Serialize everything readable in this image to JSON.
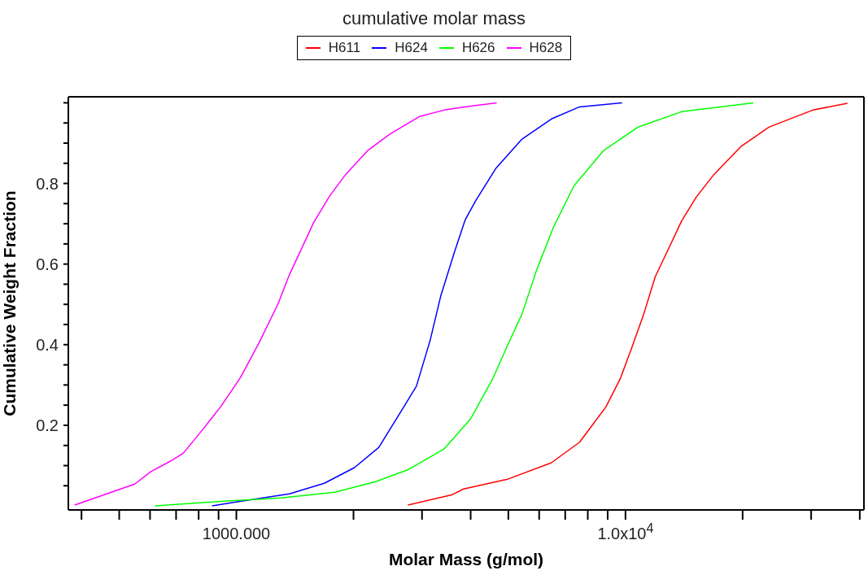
{
  "chart_data": {
    "type": "line",
    "title": "cumulative molar mass",
    "xlabel": "Molar Mass (g/mol)",
    "ylabel": "Cumulative Weight Fraction",
    "log": "x",
    "legend": "top",
    "xlim": [
      370,
      41000
    ],
    "xticks": [
      {
        "value": 400,
        "label": null
      },
      {
        "value": 500,
        "label": null
      },
      {
        "value": 600,
        "label": null
      },
      {
        "value": 700,
        "label": null
      },
      {
        "value": 800,
        "label": null
      },
      {
        "value": 900,
        "label": null
      },
      {
        "value": 1000,
        "label": "1000.000"
      },
      {
        "value": 2000,
        "label": null
      },
      {
        "value": 3000,
        "label": null
      },
      {
        "value": 4000,
        "label": null
      },
      {
        "value": 5000,
        "label": null
      },
      {
        "value": 6000,
        "label": null
      },
      {
        "value": 7000,
        "label": null
      },
      {
        "value": 8000,
        "label": null
      },
      {
        "value": 9000,
        "label": null
      },
      {
        "value": 10000,
        "label": "1.0x10$^{4}$"
      },
      {
        "value": 20000,
        "label": null
      },
      {
        "value": 30000,
        "label": null
      },
      {
        "value": 40000,
        "label": null
      }
    ],
    "ylim": [
      -0.01,
      1.015
    ],
    "yticks": [
      {
        "value": 0.05,
        "label": null
      },
      {
        "value": 0.1,
        "label": null
      },
      {
        "value": 0.15,
        "label": null
      },
      {
        "value": 0.2,
        "label": "0.2"
      },
      {
        "value": 0.25,
        "label": null
      },
      {
        "value": 0.3,
        "label": null
      },
      {
        "value": 0.35,
        "label": null
      },
      {
        "value": 0.4,
        "label": "0.4"
      },
      {
        "value": 0.45,
        "label": null
      },
      {
        "value": 0.5,
        "label": null
      },
      {
        "value": 0.55,
        "label": null
      },
      {
        "value": 0.6,
        "label": "0.6"
      },
      {
        "value": 0.65,
        "label": null
      },
      {
        "value": 0.7,
        "label": null
      },
      {
        "value": 0.75,
        "label": null
      },
      {
        "value": 0.8,
        "label": "0.8"
      },
      {
        "value": 0.85,
        "label": null
      },
      {
        "value": 0.9,
        "label": null
      },
      {
        "value": 0.95,
        "label": null
      },
      {
        "value": 1.0,
        "label": null
      }
    ],
    "series": [
      {
        "name": "H611",
        "color": "#ff0000",
        "x": [
          2760,
          3590,
          3835,
          4970,
          6450,
          7620,
          8900,
          9700,
          10420,
          11140,
          11930,
          12760,
          13940,
          15200,
          16870,
          19770,
          23400,
          30300,
          37200
        ],
        "values": [
          0.002,
          0.028,
          0.042,
          0.066,
          0.107,
          0.158,
          0.245,
          0.316,
          0.397,
          0.476,
          0.569,
          0.628,
          0.707,
          0.766,
          0.822,
          0.891,
          0.94,
          0.982,
          0.999
        ]
      },
      {
        "name": "H624",
        "color": "#0000ff",
        "x": [
          866,
          1005,
          1368,
          1682,
          2011,
          2323,
          2683,
          2902,
          3148,
          3350,
          3630,
          3870,
          4120,
          4650,
          5420,
          6450,
          7620,
          9800
        ],
        "values": [
          0.0,
          0.01,
          0.03,
          0.056,
          0.095,
          0.145,
          0.243,
          0.297,
          0.411,
          0.52,
          0.628,
          0.709,
          0.757,
          0.838,
          0.91,
          0.96,
          0.99,
          1.0
        ]
      },
      {
        "name": "H626",
        "color": "#00ff00",
        "x": [
          618,
          944,
          1303,
          1790,
          2279,
          2764,
          3415,
          4000,
          4560,
          4970,
          5420,
          5910,
          6540,
          7370,
          8770,
          10780,
          13940,
          21300
        ],
        "values": [
          0.0,
          0.012,
          0.02,
          0.034,
          0.06,
          0.09,
          0.141,
          0.216,
          0.316,
          0.397,
          0.476,
          0.585,
          0.693,
          0.794,
          0.881,
          0.94,
          0.978,
          1.0
        ]
      },
      {
        "name": "H628",
        "color": "#ff00ff",
        "x": [
          384,
          497,
          548,
          603,
          674,
          731,
          817,
          913,
          1024,
          1144,
          1278,
          1368,
          1477,
          1580,
          1740,
          1916,
          2172,
          2475,
          2956,
          3415,
          4000,
          4667
        ],
        "values": [
          0.002,
          0.04,
          0.054,
          0.085,
          0.11,
          0.131,
          0.188,
          0.247,
          0.318,
          0.405,
          0.5,
          0.573,
          0.642,
          0.703,
          0.77,
          0.824,
          0.881,
          0.922,
          0.966,
          0.982,
          0.992,
          1.0
        ]
      }
    ]
  }
}
